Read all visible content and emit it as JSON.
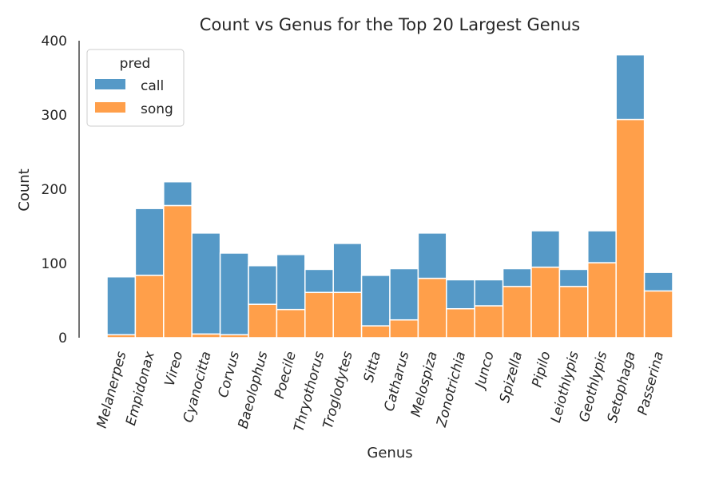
{
  "chart_data": {
    "type": "bar",
    "stacked": true,
    "title": "Count vs Genus for the Top 20 Largest Genus",
    "xlabel": "Genus",
    "ylabel": "Count",
    "ylim": [
      0,
      400
    ],
    "yticks": [
      0,
      100,
      200,
      300,
      400
    ],
    "grid": false,
    "legend": {
      "title": "pred",
      "placement": "top-left"
    },
    "categories": [
      "Melanerpes",
      "Empidonax",
      "Vireo",
      "Cyanocitta",
      "Corvus",
      "Baeolophus",
      "Poecile",
      "Thryothorus",
      "Troglodytes",
      "Sitta",
      "Catharus",
      "Melospiza",
      "Zonotrichia",
      "Junco",
      "Spizella",
      "Pipilo",
      "Leiothlypis",
      "Geothlypis",
      "Setophaga",
      "Passerina"
    ],
    "series": [
      {
        "name": "song",
        "color": "#ff9f4a",
        "values": [
          4,
          84,
          178,
          5,
          4,
          45,
          38,
          61,
          61,
          16,
          24,
          80,
          39,
          43,
          69,
          95,
          69,
          101,
          294,
          63
        ]
      },
      {
        "name": "call",
        "color": "#5599c7",
        "values": [
          78,
          90,
          32,
          136,
          110,
          52,
          74,
          31,
          66,
          68,
          69,
          61,
          39,
          35,
          24,
          49,
          23,
          43,
          87,
          25
        ]
      }
    ]
  }
}
